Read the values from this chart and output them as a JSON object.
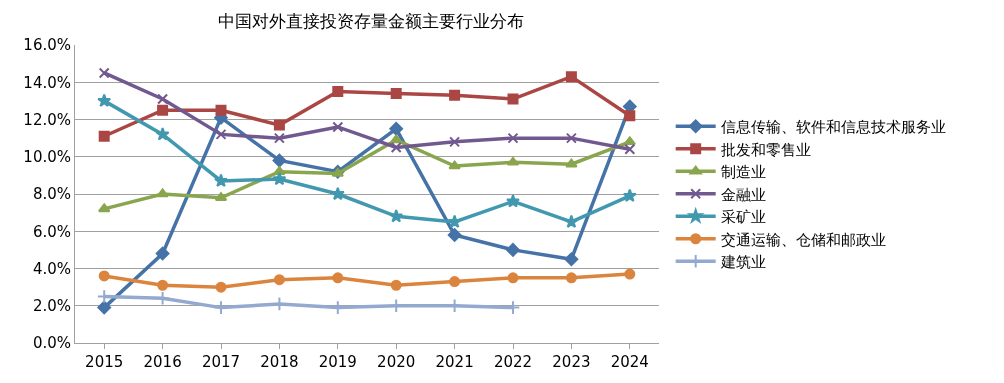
{
  "chart_data": {
    "type": "line",
    "title": "中国对外直接投资存量金额主要行业分布",
    "categories": [
      "2015",
      "2016",
      "2017",
      "2018",
      "2019",
      "2020",
      "2021",
      "2022",
      "2023",
      "2024"
    ],
    "series": [
      {
        "name": "信息传输、软件和信息技术服务业",
        "color": "#4572a7",
        "marker": "diamond",
        "values": [
          1.9,
          4.8,
          12.1,
          9.8,
          9.2,
          11.5,
          5.8,
          5.0,
          4.5,
          12.7
        ]
      },
      {
        "name": "批发和零售业",
        "color": "#aa4643",
        "marker": "square",
        "values": [
          11.1,
          12.5,
          12.5,
          11.7,
          13.5,
          13.4,
          13.3,
          13.1,
          14.3,
          12.2
        ]
      },
      {
        "name": "制造业",
        "color": "#89a54e",
        "marker": "triangle",
        "values": [
          7.2,
          8.0,
          7.8,
          9.2,
          9.1,
          10.9,
          9.5,
          9.7,
          9.6,
          10.8
        ]
      },
      {
        "name": "金融业",
        "color": "#71588f",
        "marker": "cross",
        "values": [
          14.5,
          13.1,
          11.2,
          11.0,
          11.6,
          10.5,
          10.8,
          11.0,
          11.0,
          10.4
        ]
      },
      {
        "name": "采矿业",
        "color": "#4198af",
        "marker": "star",
        "values": [
          13.0,
          11.2,
          8.7,
          8.8,
          8.0,
          6.8,
          6.5,
          7.6,
          6.5,
          7.9
        ]
      },
      {
        "name": "交通运输、仓储和邮政业",
        "color": "#db843d",
        "marker": "circle",
        "values": [
          3.6,
          3.1,
          3.0,
          3.4,
          3.5,
          3.1,
          3.3,
          3.5,
          3.5,
          3.7
        ]
      },
      {
        "name": "建筑业",
        "color": "#93a9cf",
        "marker": "plus",
        "values": [
          2.5,
          2.4,
          1.9,
          2.1,
          1.9,
          2.0,
          2.0,
          1.9,
          null,
          null
        ]
      }
    ],
    "ylim": [
      0,
      16
    ],
    "yticks": [
      {
        "value": 0,
        "label": "0.0%"
      },
      {
        "value": 2,
        "label": "2.0%"
      },
      {
        "value": 4,
        "label": "4.0%"
      },
      {
        "value": 6,
        "label": "6.0%"
      },
      {
        "value": 8,
        "label": "8.0%"
      },
      {
        "value": 10,
        "label": "10.0%"
      },
      {
        "value": 12,
        "label": "12.0%"
      },
      {
        "value": 14,
        "label": "14.0%"
      },
      {
        "value": 16,
        "label": "16.0%"
      }
    ],
    "grid": "y",
    "legend": "right",
    "line_style": "solid"
  }
}
